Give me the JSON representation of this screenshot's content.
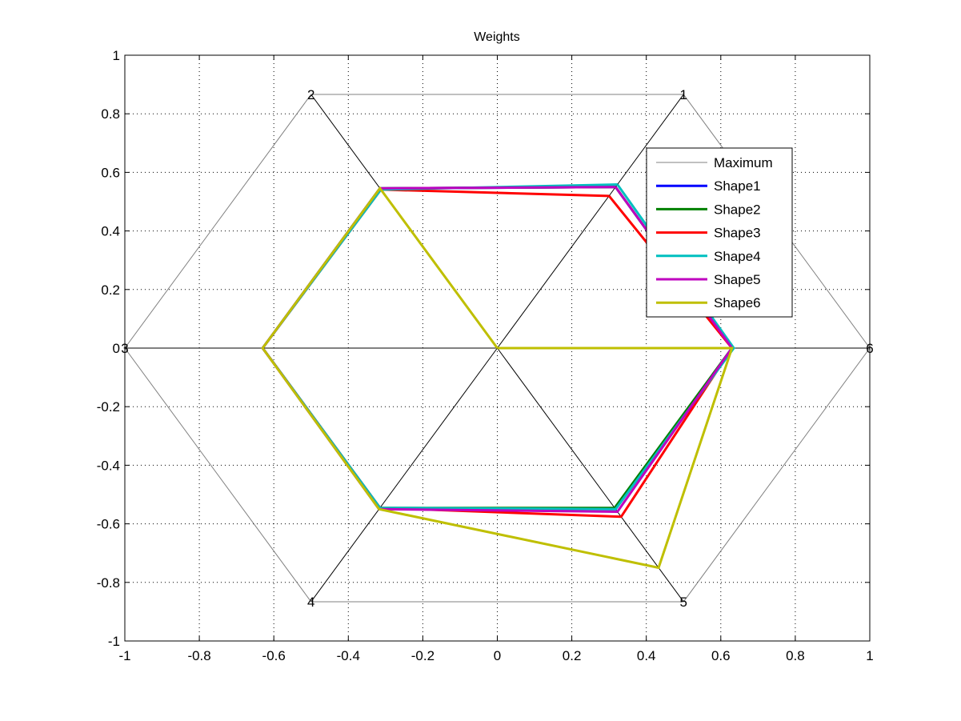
{
  "chart_data": {
    "type": "radar",
    "title": "Weights",
    "xlabel": "",
    "ylabel": "",
    "xlim": [
      -1,
      1
    ],
    "ylim": [
      -1,
      1
    ],
    "grid": true,
    "x_ticks": [
      "-1",
      "-0.8",
      "-0.6",
      "-0.4",
      "-0.2",
      "0",
      "0.2",
      "0.4",
      "0.6",
      "0.8",
      "1"
    ],
    "y_ticks": [
      "1",
      "0.8",
      "0.6",
      "0.4",
      "0.2",
      "0",
      "-0.2",
      "-0.4",
      "-0.6",
      "-0.8",
      "-1"
    ],
    "axis_labels": [
      "1",
      "2",
      "3",
      "4",
      "5",
      "6"
    ],
    "axis_angles_deg": [
      60,
      120,
      180,
      240,
      300,
      0
    ],
    "maximum": 1,
    "legend_position": "top-right",
    "series": [
      {
        "name": "Maximum",
        "color": "#808080",
        "values": [
          1,
          1,
          1,
          1,
          1,
          1
        ]
      },
      {
        "name": "Shape1",
        "color": "#0000ff",
        "values": [
          0.635,
          0.63,
          0.63,
          0.63,
          0.635,
          0.63
        ]
      },
      {
        "name": "Shape2",
        "color": "#008000",
        "values": [
          0.635,
          0.63,
          0.63,
          0.63,
          0.63,
          0.63
        ]
      },
      {
        "name": "Shape3",
        "color": "#ff0000",
        "values": [
          0.6,
          0.625,
          0.63,
          0.63,
          0.665,
          0.63
        ]
      },
      {
        "name": "Shape4",
        "color": "#00bfbf",
        "values": [
          0.645,
          0.625,
          0.63,
          0.63,
          0.635,
          0.635
        ]
      },
      {
        "name": "Shape5",
        "color": "#bf00bf",
        "values": [
          0.635,
          0.63,
          0.63,
          0.635,
          0.645,
          0.63
        ]
      },
      {
        "name": "Shape6",
        "color": "#bfbf00",
        "values": [
          0,
          0.63,
          0.63,
          0.635,
          0.866,
          0.63
        ]
      }
    ]
  }
}
